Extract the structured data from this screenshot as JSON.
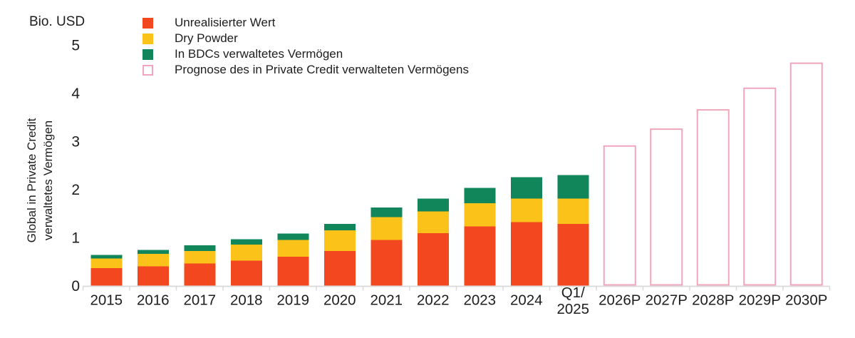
{
  "unit_label": "Bio. USD",
  "y_axis": {
    "title_line1": "Global in Private Credit",
    "title_line2": "verwaltetes Vermögen",
    "tick_labels": [
      "0",
      "1",
      "2",
      "3",
      "4",
      "5"
    ]
  },
  "colors": {
    "text": "#1d1d1d",
    "axis": "#d9d9d9",
    "unrealized": "#f3481f",
    "dry_powder": "#fbc31a",
    "bdc": "#10865a",
    "forecast_outline": "#f1a5bb",
    "background": "#ffffff"
  },
  "chart_data": {
    "type": "bar",
    "stacked": true,
    "title": "",
    "unit": "Bio. USD",
    "ylabel": "Global in Private Credit verwaltetes Vermögen",
    "xlabel": "",
    "ylim": [
      0,
      5
    ],
    "y_ticks": [
      0,
      1,
      2,
      3,
      4,
      5
    ],
    "grid": false,
    "legend_position": "top-left",
    "categories": [
      "2015",
      "2016",
      "2017",
      "2018",
      "2019",
      "2020",
      "2021",
      "2022",
      "2023",
      "2024",
      "Q1/\n2025",
      "2026P",
      "2027P",
      "2028P",
      "2029P",
      "2030P"
    ],
    "series": [
      {
        "name": "Unrealisierter Wert",
        "type": "filled",
        "color": "#f3481f",
        "values": [
          0.36,
          0.4,
          0.46,
          0.52,
          0.6,
          0.72,
          0.95,
          1.09,
          1.23,
          1.32,
          1.28,
          0,
          0,
          0,
          0,
          0
        ]
      },
      {
        "name": "Dry Powder",
        "type": "filled",
        "color": "#fbc31a",
        "values": [
          0.2,
          0.26,
          0.26,
          0.33,
          0.35,
          0.43,
          0.47,
          0.45,
          0.48,
          0.49,
          0.53,
          0,
          0,
          0,
          0,
          0
        ]
      },
      {
        "name": "In BDCs verwaltetes Vermögen",
        "type": "filled",
        "color": "#10865a",
        "values": [
          0.08,
          0.08,
          0.12,
          0.11,
          0.13,
          0.13,
          0.2,
          0.27,
          0.32,
          0.44,
          0.49,
          0,
          0,
          0,
          0,
          0
        ]
      },
      {
        "name": "Prognose des in Private Credit verwalteten Vermögens",
        "type": "outline",
        "color": "#f1a5bb",
        "values": [
          0,
          0,
          0,
          0,
          0,
          0,
          0,
          0,
          0,
          0,
          0,
          2.9,
          3.25,
          3.65,
          4.1,
          4.62
        ]
      }
    ],
    "totals_historical": [
      0.64,
      0.74,
      0.84,
      0.96,
      1.08,
      1.28,
      1.62,
      1.81,
      2.03,
      2.25,
      2.3
    ]
  }
}
